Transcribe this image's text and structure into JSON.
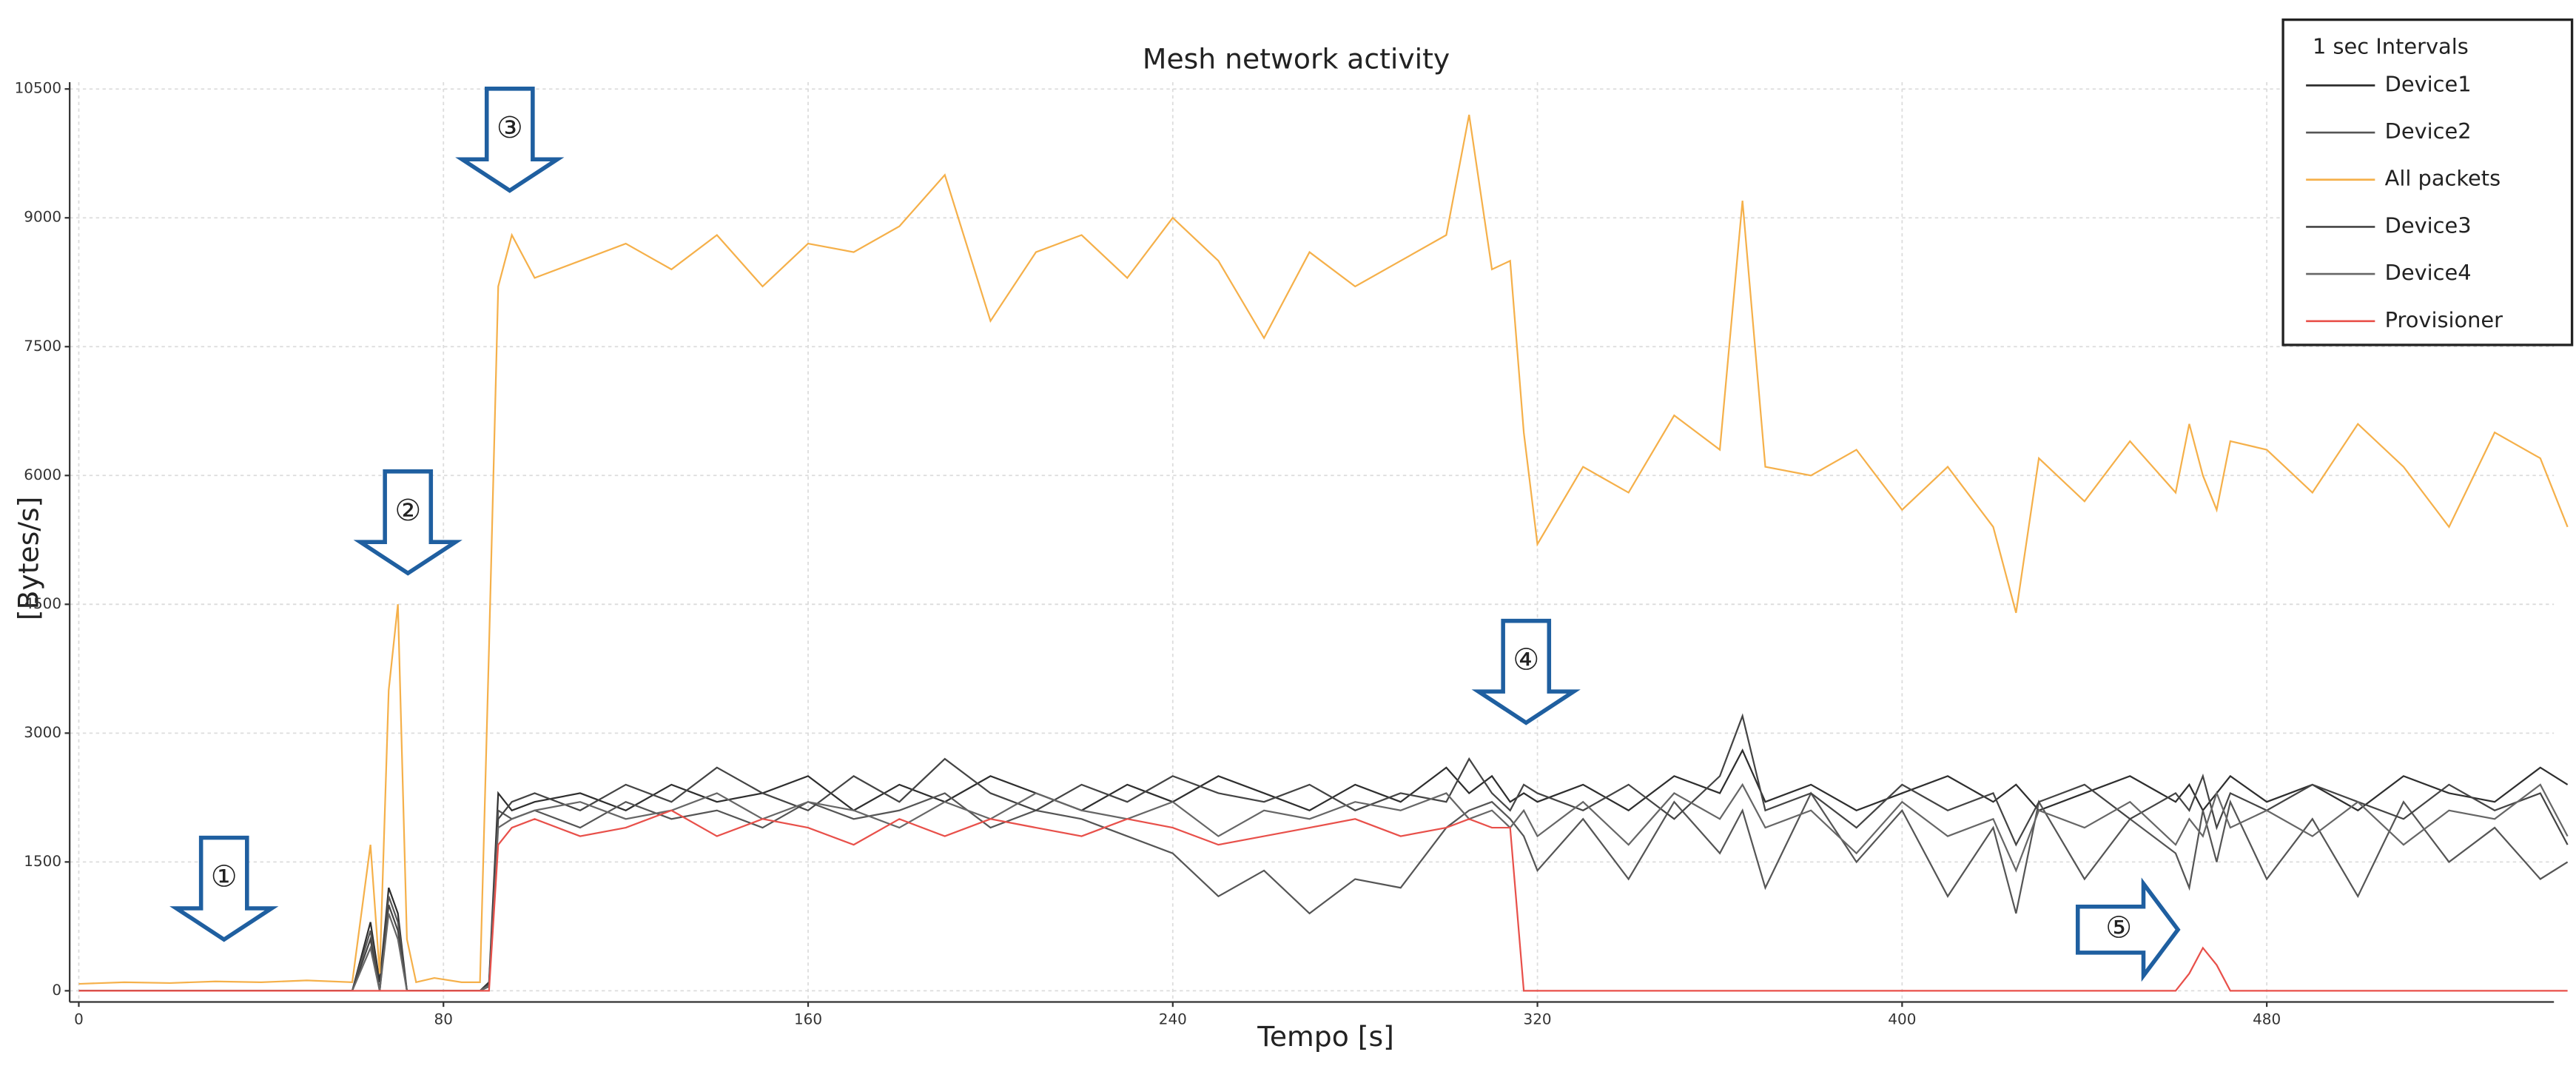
{
  "chart_data": {
    "type": "line",
    "title": "Mesh network activity",
    "x_label": "Tempo [s]",
    "y_label": "[Bytes/s]",
    "x": [
      0,
      10,
      20,
      30,
      40,
      50,
      60,
      64,
      66,
      68,
      70,
      72,
      74,
      78,
      84,
      88,
      90,
      92,
      95,
      100,
      110,
      120,
      130,
      140,
      150,
      160,
      170,
      180,
      190,
      200,
      210,
      220,
      230,
      240,
      250,
      260,
      270,
      280,
      290,
      300,
      305,
      310,
      314,
      317,
      320,
      330,
      340,
      350,
      360,
      365,
      370,
      380,
      390,
      400,
      410,
      420,
      425,
      430,
      440,
      450,
      460,
      463,
      466,
      469,
      472,
      480,
      490,
      500,
      510,
      520,
      530,
      540,
      546
    ],
    "series": [
      {
        "name": "Device1",
        "color": "#2e2e2e",
        "values": [
          0,
          0,
          0,
          0,
          0,
          0,
          0,
          800,
          100,
          1200,
          900,
          0,
          0,
          0,
          0,
          0,
          100,
          2300,
          2100,
          2200,
          2300,
          2100,
          2400,
          2200,
          2300,
          2500,
          2100,
          2400,
          2200,
          2500,
          2300,
          2100,
          2400,
          2200,
          2500,
          2300,
          2100,
          2400,
          2200,
          2600,
          2300,
          2500,
          2200,
          2300,
          2200,
          2400,
          2100,
          2500,
          2300,
          2800,
          2200,
          2400,
          2100,
          2300,
          2500,
          2200,
          2400,
          2100,
          2300,
          2500,
          2200,
          2400,
          2100,
          2300,
          2500,
          2200,
          2400,
          2100,
          2500,
          2300,
          2200,
          2600,
          2400
        ]
      },
      {
        "name": "Device2",
        "color": "#555555",
        "values": [
          0,
          0,
          0,
          0,
          0,
          0,
          0,
          700,
          0,
          1100,
          800,
          0,
          0,
          0,
          0,
          0,
          50,
          2100,
          2000,
          2100,
          1900,
          2200,
          2000,
          2100,
          1900,
          2200,
          2000,
          2100,
          2300,
          1900,
          2100,
          2000,
          1800,
          1600,
          1100,
          1400,
          900,
          1300,
          1200,
          1900,
          2100,
          2200,
          2000,
          1800,
          1400,
          2000,
          1300,
          2200,
          1600,
          2100,
          1200,
          2300,
          1500,
          2100,
          1100,
          1900,
          900,
          2200,
          1300,
          2000,
          1600,
          1200,
          2100,
          1500,
          2200,
          1300,
          2000,
          1100,
          2200,
          1500,
          1900,
          1300,
          1500
        ]
      },
      {
        "name": "All packets",
        "color": "#f5b04a",
        "values": [
          80,
          100,
          90,
          110,
          100,
          120,
          100,
          1700,
          200,
          3500,
          4500,
          600,
          100,
          150,
          100,
          100,
          4000,
          8200,
          8800,
          8300,
          8500,
          8700,
          8400,
          8800,
          8200,
          8700,
          8600,
          8900,
          9500,
          7800,
          8600,
          8800,
          8300,
          9000,
          8500,
          7600,
          8600,
          8200,
          8500,
          8800,
          10200,
          8400,
          8500,
          6500,
          5200,
          6100,
          5800,
          6700,
          6300,
          9200,
          6100,
          6000,
          6300,
          5600,
          6100,
          5400,
          4400,
          6200,
          5700,
          6400,
          5800,
          6600,
          6000,
          5600,
          6400,
          6300,
          5800,
          6600,
          6100,
          5400,
          6500,
          6200,
          5400
        ]
      },
      {
        "name": "Device3",
        "color": "#444444",
        "values": [
          0,
          0,
          0,
          0,
          0,
          0,
          0,
          600,
          0,
          1000,
          700,
          0,
          0,
          0,
          0,
          0,
          80,
          2000,
          2200,
          2300,
          2100,
          2400,
          2200,
          2600,
          2300,
          2100,
          2500,
          2200,
          2700,
          2300,
          2100,
          2400,
          2200,
          2500,
          2300,
          2200,
          2400,
          2100,
          2300,
          2200,
          2700,
          2300,
          2100,
          2400,
          2300,
          2100,
          2400,
          2000,
          2500,
          3200,
          2100,
          2300,
          1900,
          2400,
          2100,
          2300,
          1700,
          2200,
          2400,
          2000,
          2300,
          2100,
          2500,
          1900,
          2300,
          2100,
          2400,
          2200,
          2000,
          2400,
          2100,
          2300,
          1700
        ]
      },
      {
        "name": "Device4",
        "color": "#666666",
        "values": [
          0,
          0,
          0,
          0,
          0,
          0,
          0,
          500,
          0,
          900,
          600,
          0,
          0,
          0,
          0,
          0,
          60,
          1900,
          2000,
          2100,
          2200,
          2000,
          2100,
          2300,
          2000,
          2200,
          2100,
          1900,
          2200,
          2000,
          2300,
          2100,
          2000,
          2200,
          1800,
          2100,
          2000,
          2200,
          2100,
          2300,
          2000,
          2100,
          1900,
          2100,
          1800,
          2200,
          1700,
          2300,
          2000,
          2400,
          1900,
          2100,
          1600,
          2200,
          1800,
          2000,
          1400,
          2100,
          1900,
          2200,
          1700,
          2000,
          1800,
          2300,
          1900,
          2100,
          1800,
          2200,
          1700,
          2100,
          2000,
          2400,
          1800
        ]
      },
      {
        "name": "Provisioner",
        "color": "#e8504a",
        "values": [
          0,
          0,
          0,
          0,
          0,
          0,
          0,
          0,
          0,
          0,
          0,
          0,
          0,
          0,
          0,
          0,
          0,
          1700,
          1900,
          2000,
          1800,
          1900,
          2100,
          1800,
          2000,
          1900,
          1700,
          2000,
          1800,
          2000,
          1900,
          1800,
          2000,
          1900,
          1700,
          1800,
          1900,
          2000,
          1800,
          1900,
          2000,
          1900,
          1900,
          0,
          0,
          0,
          0,
          0,
          0,
          0,
          0,
          0,
          0,
          0,
          0,
          0,
          0,
          0,
          0,
          0,
          0,
          200,
          500,
          300,
          0,
          0,
          0,
          0,
          0,
          0,
          0,
          0,
          0
        ]
      }
    ],
    "xlim": [
      -2,
      543
    ],
    "ylim": [
      -130,
      10580
    ],
    "xticks": [
      0,
      80,
      160,
      240,
      320,
      400,
      480
    ],
    "yticks": [
      0,
      1500,
      3000,
      4500,
      6000,
      7500,
      9000,
      10500
    ],
    "grid": true,
    "legend": "upper right",
    "legend_title": "1 sec Intervals",
    "annotations": [
      "①",
      "②",
      "③",
      "④",
      "⑤"
    ]
  }
}
